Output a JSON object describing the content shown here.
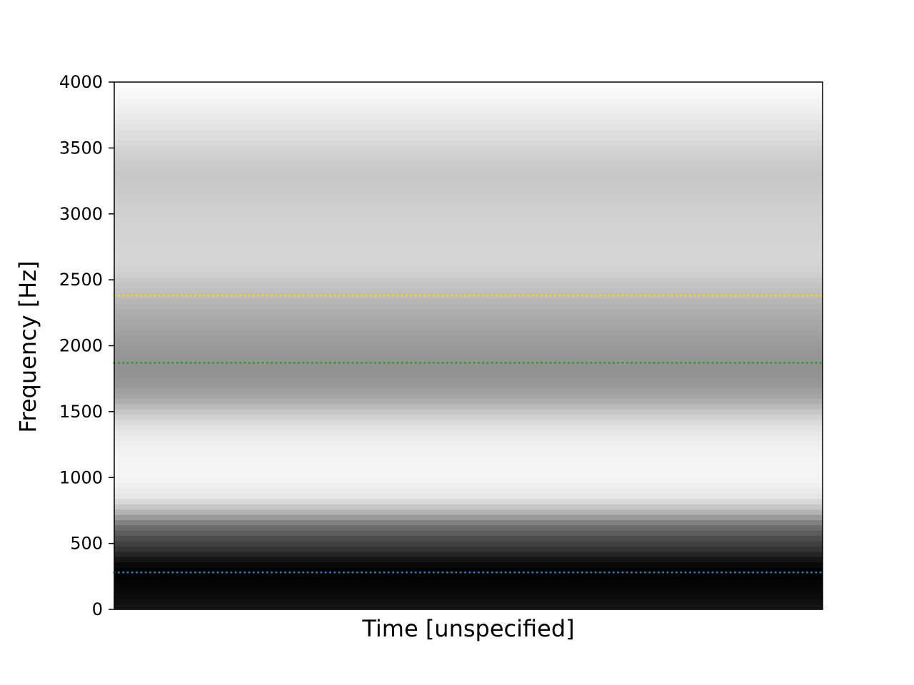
{
  "chart_data": {
    "type": "heatmap",
    "title": "",
    "xlabel": "Time [unspecified]",
    "ylabel": "Frequency [Hz]",
    "ylim": [
      0,
      4000
    ],
    "yticks": [
      0,
      500,
      1000,
      1500,
      2000,
      2500,
      3000,
      3500,
      4000
    ],
    "xticks": [],
    "colormap": "gray",
    "grid": false,
    "legend": "none",
    "spectrum": {
      "frequency_hz": [
        0,
        80,
        200,
        280,
        360,
        420,
        500,
        560,
        620,
        680,
        720,
        780,
        850,
        1000,
        1100,
        1200,
        1300,
        1400,
        1500,
        1600,
        1700,
        1800,
        1900,
        2000,
        2100,
        2200,
        2300,
        2400,
        2500,
        2600,
        2700,
        2800,
        3000,
        3200,
        3300,
        3400,
        3500,
        3600,
        3700,
        3800,
        3900,
        4000
      ],
      "intensity": [
        0.1,
        0.05,
        0.02,
        0.0,
        0.05,
        0.15,
        0.25,
        0.33,
        0.42,
        0.55,
        0.66,
        0.78,
        0.9,
        0.96,
        0.96,
        0.95,
        0.92,
        0.88,
        0.78,
        0.66,
        0.6,
        0.57,
        0.58,
        0.6,
        0.63,
        0.66,
        0.7,
        0.74,
        0.79,
        0.83,
        0.84,
        0.83,
        0.82,
        0.79,
        0.78,
        0.8,
        0.83,
        0.87,
        0.9,
        0.94,
        0.97,
        1.0
      ]
    },
    "lines": [
      {
        "frequency": 280,
        "color": "#1f77b4",
        "style": "dotted"
      },
      {
        "frequency": 1870,
        "color": "#2ca02c",
        "style": "dotted"
      },
      {
        "frequency": 2380,
        "color": "#ffd700",
        "style": "dotted"
      }
    ]
  }
}
